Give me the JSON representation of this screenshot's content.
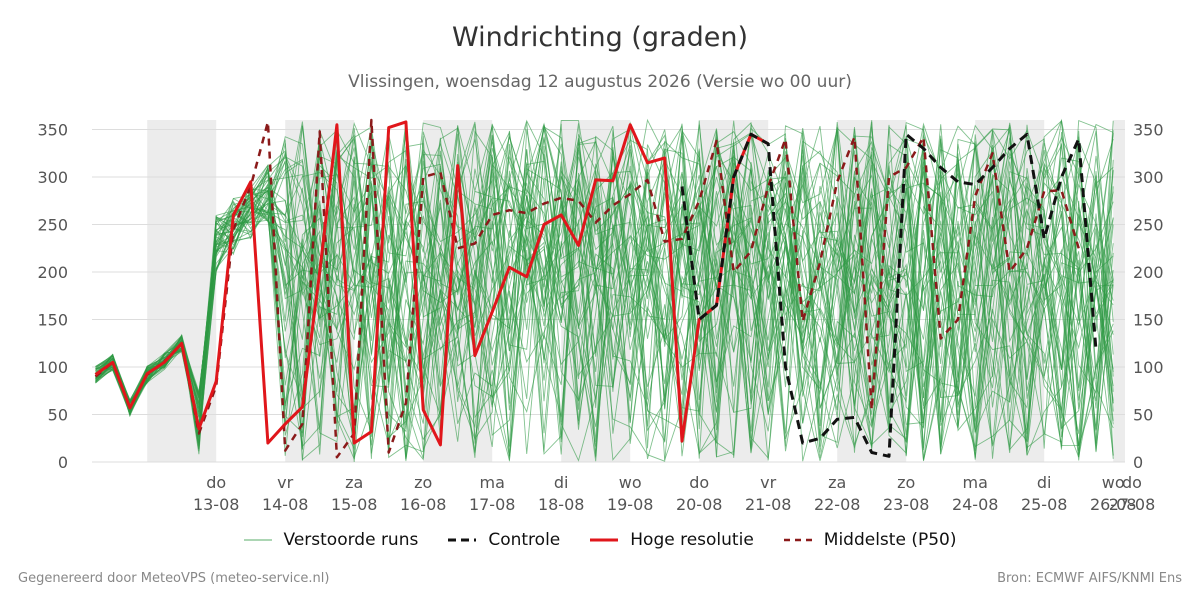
{
  "header": {
    "title": "Windrichting (graden)",
    "subtitle": "Vlissingen, woensdag 12 augustus 2026 (Versie wo 00 uur)"
  },
  "footer": {
    "left": "Gegenereerd door MeteoVPS (meteo-service.nl)",
    "right": "Bron: ECMWF AIFS/KNMI Ens"
  },
  "legend": {
    "ensemble": "Verstoorde runs",
    "control": "Controle",
    "hires": "Hoge resolutie",
    "median": "Middelste (P50)"
  },
  "colors": {
    "ensemble": "#2e9a44",
    "control": "#111111",
    "hires": "#e0161b",
    "median": "#8b1a1a",
    "shade": "#ececec",
    "grid": "#dddddd"
  },
  "chart_data": {
    "type": "line",
    "title": "Windrichting (graden)",
    "ylim": [
      0,
      360
    ],
    "yticks": [
      0,
      50,
      100,
      150,
      200,
      250,
      300,
      350
    ],
    "grid": true,
    "legend_position": "bottom",
    "x_unit": "day-offset from 12-08 00h",
    "xlim": [
      -0.8,
      14.0
    ],
    "day_labels": [
      {
        "x": 1,
        "day": "do",
        "date": "13-08"
      },
      {
        "x": 2,
        "day": "vr",
        "date": "14-08"
      },
      {
        "x": 3,
        "day": "za",
        "date": "15-08"
      },
      {
        "x": 4,
        "day": "zo",
        "date": "16-08"
      },
      {
        "x": 5,
        "day": "ma",
        "date": "17-08"
      },
      {
        "x": 6,
        "day": "di",
        "date": "18-08"
      },
      {
        "x": 7,
        "day": "wo",
        "date": "19-08"
      },
      {
        "x": 8,
        "day": "do",
        "date": "20-08"
      },
      {
        "x": 9,
        "day": "vr",
        "date": "21-08"
      },
      {
        "x": 10,
        "day": "za",
        "date": "22-08"
      },
      {
        "x": 11,
        "day": "zo",
        "date": "23-08"
      },
      {
        "x": 12,
        "day": "ma",
        "date": "24-08"
      },
      {
        "x": 13,
        "day": "di",
        "date": "25-08"
      },
      {
        "x": 14,
        "day": "wo",
        "date": "26-08"
      },
      {
        "x": 15,
        "day": "do",
        "date": "27-08"
      }
    ],
    "series": [
      {
        "name": "Hoge resolutie",
        "style": "solid",
        "x": [
          -0.75,
          -0.5,
          -0.25,
          0,
          0.25,
          0.5,
          0.75,
          1,
          1.25,
          1.5,
          1.75,
          2,
          2.25,
          2.5,
          2.75,
          3,
          3.25,
          3.5,
          3.75,
          4,
          4.25,
          4.5,
          4.75,
          5,
          5.25,
          5.5,
          5.75,
          6,
          6.25,
          6.5,
          6.75,
          7,
          7.25,
          7.5,
          7.75,
          8,
          8.25,
          8.5,
          8.75,
          9,
          9.25,
          9.5,
          9.75
        ],
        "values": [
          92,
          105,
          57,
          93,
          105,
          125,
          35,
          85,
          260,
          295,
          20,
          40,
          58,
          200,
          355,
          20,
          32,
          352,
          358,
          55,
          18,
          312,
          112,
          158,
          205,
          195,
          250,
          260,
          228,
          297,
          296,
          355,
          315,
          320,
          22,
          150,
          165,
          300,
          345,
          335,
          null,
          null,
          null
        ]
      },
      {
        "name": "Controle",
        "style": "dash",
        "x": [
          7.75,
          8,
          8.25,
          8.5,
          8.75,
          9,
          9.25,
          9.5,
          9.75,
          10,
          10.25,
          10.5,
          10.75,
          11,
          11.25,
          11.5,
          11.75,
          12,
          12.25,
          12.5,
          12.75,
          13,
          13.25,
          13.5,
          13.75,
          14
        ],
        "values": [
          290,
          150,
          165,
          300,
          345,
          335,
          100,
          20,
          25,
          45,
          47,
          10,
          6,
          345,
          330,
          310,
          295,
          292,
          310,
          330,
          345,
          235,
          300,
          340,
          118,
          null
        ]
      },
      {
        "name": "Middelste (P50)",
        "style": "dash",
        "x": [
          -0.75,
          -0.5,
          -0.25,
          0,
          0.25,
          0.5,
          0.75,
          1,
          1.25,
          1.5,
          1.75,
          2,
          2.25,
          2.5,
          2.75,
          3,
          3.25,
          3.5,
          3.75,
          4,
          4.25,
          4.5,
          4.75,
          5,
          5.25,
          5.5,
          5.75,
          6,
          6.25,
          6.5,
          6.75,
          7,
          7.25,
          7.5,
          7.75,
          8,
          8.25,
          8.5,
          8.75,
          9,
          9.25,
          9.5,
          9.75,
          10,
          10.25,
          10.5,
          10.75,
          11,
          11.25,
          11.5,
          11.75,
          12,
          12.25,
          12.5,
          12.75,
          13,
          13.25,
          13.5
        ],
        "values": [
          90,
          105,
          57,
          92,
          106,
          125,
          30,
          80,
          245,
          290,
          358,
          12,
          40,
          348,
          5,
          30,
          360,
          10,
          62,
          300,
          305,
          225,
          230,
          260,
          265,
          262,
          272,
          278,
          275,
          252,
          270,
          282,
          297,
          232,
          235,
          275,
          338,
          200,
          222,
          290,
          340,
          148,
          210,
          295,
          342,
          55,
          300,
          310,
          342,
          130,
          150,
          280,
          325,
          200,
          225,
          285,
          286,
          225
        ]
      }
    ]
  }
}
